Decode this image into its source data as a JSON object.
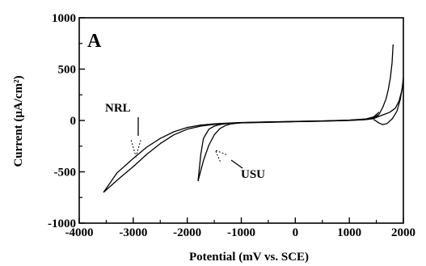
{
  "chart_data": {
    "type": "line",
    "panel_label": "A",
    "xlabel": "Potential (mV vs. SCE)",
    "ylabel": "Current (μA/cm²)",
    "xlim": [
      -4000,
      2000
    ],
    "ylim": [
      -1000,
      1000
    ],
    "x_ticks": [
      -4000,
      -3000,
      -2000,
      -1000,
      0,
      1000,
      2000
    ],
    "y_ticks": [
      -1000,
      -500,
      0,
      500,
      1000
    ],
    "grid": false,
    "annotations": [
      {
        "text": "NRL",
        "arrow_target": [
          -2950,
          -350
        ]
      },
      {
        "text": "USU",
        "arrow_target": [
          -1480,
          -290
        ]
      }
    ],
    "series": [
      {
        "x": [
          -3550,
          -3250,
          -3000,
          -2750,
          -2500,
          -2250,
          -2000,
          -1750,
          -1500,
          -1250,
          -1000,
          -500,
          0,
          500,
          1000,
          1300,
          1450,
          1550
        ],
        "y": [
          -700,
          -560,
          -450,
          -330,
          -225,
          -140,
          -85,
          -55,
          -38,
          -28,
          -22,
          -15,
          -10,
          -5,
          2,
          10,
          25,
          60
        ]
      },
      {
        "x": [
          -3550,
          -3300,
          -3000,
          -2750,
          -2500,
          -2250,
          -2000,
          -1750,
          -1500,
          -1250,
          -1000,
          -500,
          0,
          500,
          1000,
          1300,
          1450,
          1550
        ],
        "y": [
          -700,
          -510,
          -370,
          -260,
          -175,
          -110,
          -68,
          -45,
          -33,
          -26,
          -20,
          -14,
          -9,
          -4,
          4,
          14,
          35,
          80
        ]
      },
      {
        "x": [
          -1800,
          -1700,
          -1600,
          -1500,
          -1400,
          -1300,
          -1200,
          -1100,
          -1000,
          -500,
          0,
          500,
          1000,
          1300,
          1450,
          1550
        ],
        "y": [
          -590,
          -390,
          -240,
          -140,
          -80,
          -50,
          -35,
          -28,
          -24,
          -18,
          -12,
          -7,
          0,
          8,
          18,
          40
        ]
      },
      {
        "x": [
          -1800,
          -1750,
          -1700,
          -1600,
          -1500,
          -1400,
          -1300,
          -1200,
          -1000,
          -500,
          0,
          500,
          1000,
          1300,
          1450,
          1550
        ],
        "y": [
          -590,
          -330,
          -175,
          -85,
          -55,
          -40,
          -32,
          -27,
          -22,
          -16,
          -11,
          -6,
          1,
          9,
          20,
          45
        ]
      },
      {
        "x": [
          1550,
          1620,
          1680,
          1720,
          1760,
          1790,
          1810
        ],
        "y": [
          60,
          130,
          210,
          300,
          420,
          560,
          740
        ]
      },
      {
        "x": [
          1450,
          1550,
          1620,
          1700,
          1800,
          1880,
          1940,
          1980,
          2000
        ],
        "y": [
          10,
          -25,
          -40,
          -30,
          20,
          90,
          200,
          320,
          420
        ]
      },
      {
        "x": [
          1550,
          1650,
          1750,
          1850,
          1920,
          1970,
          2000
        ],
        "y": [
          40,
          60,
          80,
          120,
          190,
          290,
          390
        ]
      }
    ]
  }
}
